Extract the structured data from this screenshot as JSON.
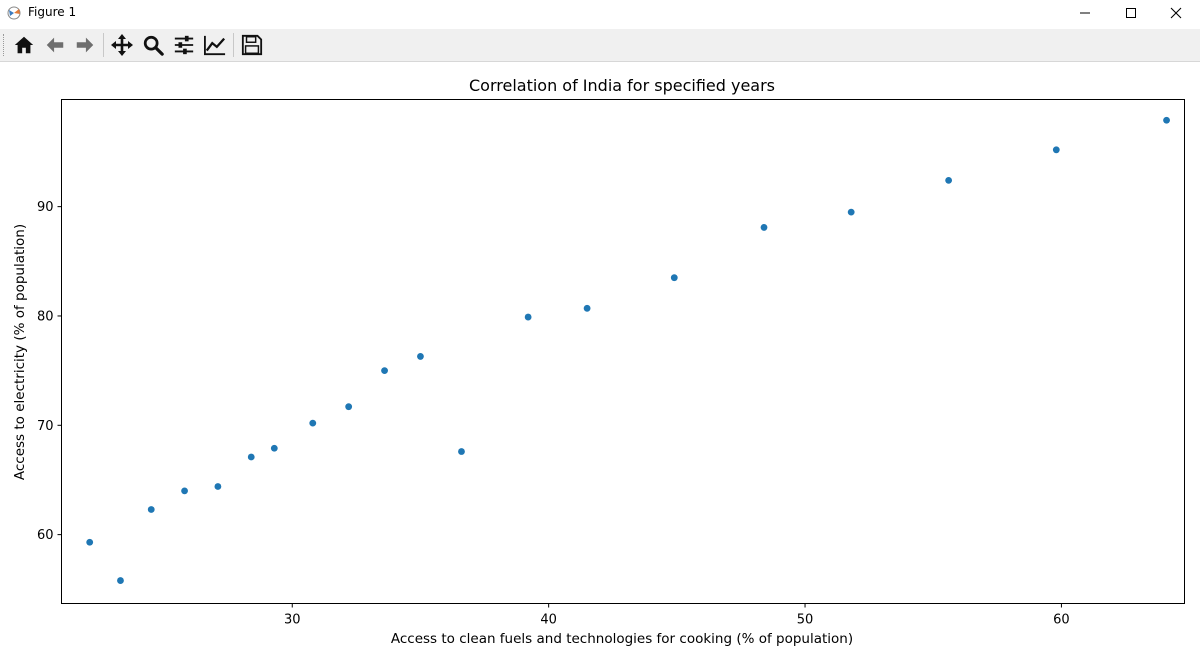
{
  "window": {
    "title": "Figure 1"
  },
  "toolbar": {
    "buttons": [
      "home-icon",
      "back-arrow-icon",
      "forward-arrow-icon",
      "pan-icon",
      "zoom-icon",
      "configure-subplots-icon",
      "edit-axis-icon",
      "save-icon"
    ]
  },
  "chart_data": {
    "type": "scatter",
    "title": "Correlation of India for specified years",
    "xlabel": "Access to clean fuels and technologies for cooking (% of population)",
    "ylabel": "Access to electricity (% of population)",
    "xlim": [
      21,
      64.8
    ],
    "ylim": [
      53.7,
      99.8
    ],
    "xticks": [
      30,
      40,
      50,
      60
    ],
    "yticks": [
      60,
      70,
      80,
      90
    ],
    "grid": false,
    "marker_color": "#1f77b4",
    "points": [
      {
        "x": 22.1,
        "y": 59.3
      },
      {
        "x": 23.3,
        "y": 55.8
      },
      {
        "x": 24.5,
        "y": 62.3
      },
      {
        "x": 25.8,
        "y": 64.0
      },
      {
        "x": 27.1,
        "y": 64.4
      },
      {
        "x": 28.4,
        "y": 67.1
      },
      {
        "x": 29.3,
        "y": 67.9
      },
      {
        "x": 30.8,
        "y": 70.2
      },
      {
        "x": 32.2,
        "y": 71.7
      },
      {
        "x": 33.6,
        "y": 75.0
      },
      {
        "x": 35.0,
        "y": 76.3
      },
      {
        "x": 36.6,
        "y": 67.6
      },
      {
        "x": 39.2,
        "y": 79.9
      },
      {
        "x": 41.5,
        "y": 80.7
      },
      {
        "x": 44.9,
        "y": 83.5
      },
      {
        "x": 48.4,
        "y": 88.1
      },
      {
        "x": 51.8,
        "y": 89.5
      },
      {
        "x": 55.6,
        "y": 92.4
      },
      {
        "x": 59.8,
        "y": 95.2
      },
      {
        "x": 64.1,
        "y": 97.9
      }
    ]
  }
}
